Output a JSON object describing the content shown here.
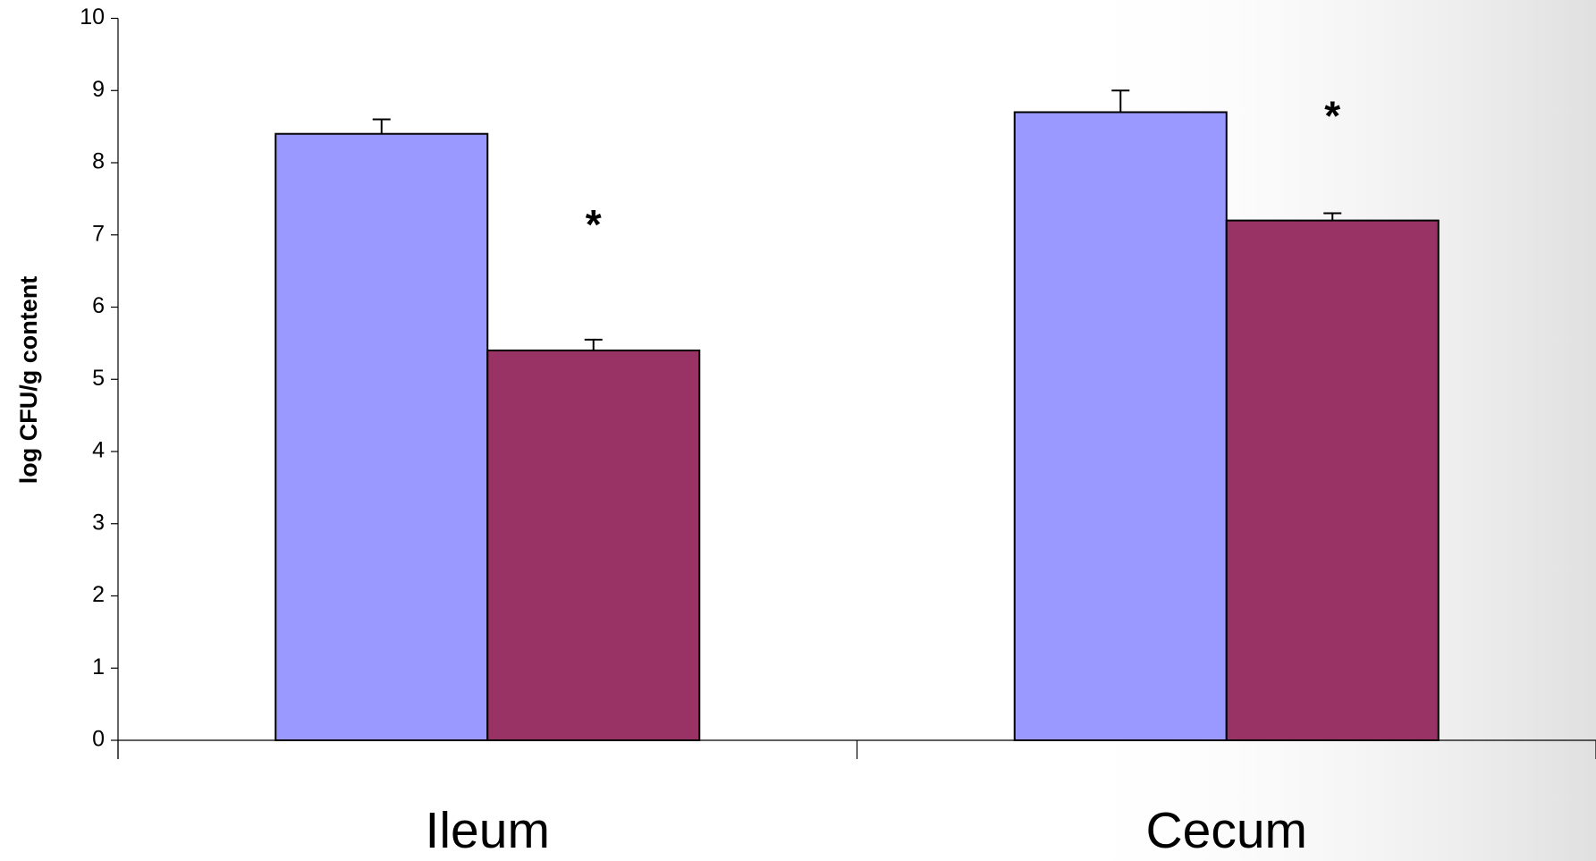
{
  "chart_data": {
    "type": "bar",
    "y_label": "log CFU/g content",
    "categories": [
      "Ileum",
      "Cecum"
    ],
    "series": [
      {
        "color": "#9999ff",
        "values": [
          8.4,
          8.7
        ],
        "errors": [
          0.2,
          0.3
        ]
      },
      {
        "color": "#993366",
        "values": [
          5.4,
          7.2
        ],
        "errors": [
          0.15,
          0.1
        ],
        "annotations": [
          "*",
          "*"
        ]
      }
    ],
    "ylim": [
      0,
      10
    ],
    "yticks": [
      0,
      1,
      2,
      3,
      4,
      5,
      6,
      7,
      8,
      9,
      10
    ]
  }
}
